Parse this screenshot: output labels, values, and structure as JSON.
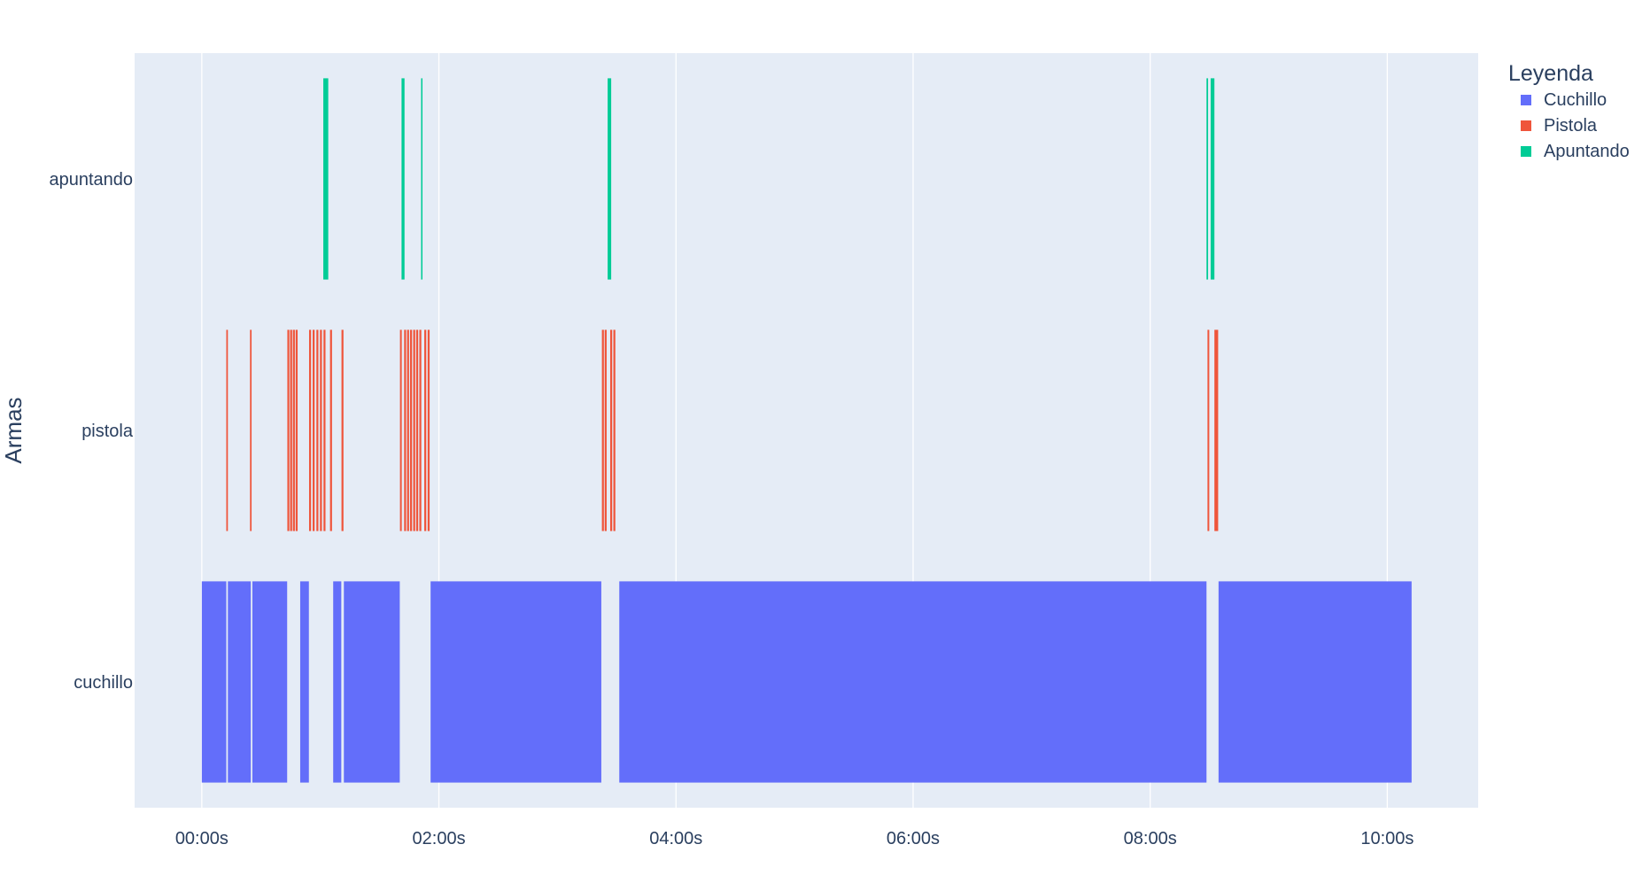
{
  "chart_data": {
    "type": "timeline",
    "title": "",
    "xlabel": "",
    "ylabel": "Armas",
    "x_unit": "seconds",
    "xlim": [
      -34,
      646
    ],
    "x_ticks": [
      {
        "value": 0,
        "label": "00:00s"
      },
      {
        "value": 120,
        "label": "02:00s"
      },
      {
        "value": 240,
        "label": "04:00s"
      },
      {
        "value": 360,
        "label": "06:00s"
      },
      {
        "value": 480,
        "label": "08:00s"
      },
      {
        "value": 600,
        "label": "10:00s"
      }
    ],
    "categories": [
      "cuchillo",
      "pistola",
      "apuntando"
    ],
    "grid": true,
    "legend": {
      "title": "Leyenda",
      "position": "top-right"
    },
    "series": [
      {
        "name": "Cuchillo",
        "category": "cuchillo",
        "color": "#636efa",
        "intervals": [
          [
            0,
            12.4
          ],
          [
            13.2,
            24.8
          ],
          [
            25.6,
            43.2
          ],
          [
            49.8,
            54.2
          ],
          [
            66.5,
            70.6
          ],
          [
            71.9,
            100.2
          ],
          [
            115.8,
            202.2
          ],
          [
            211.3,
            508.5
          ],
          [
            514.6,
            612.3
          ]
        ]
      },
      {
        "name": "Pistola",
        "category": "pistola",
        "color": "#ef553b",
        "intervals": [
          [
            12.4,
            13.2
          ],
          [
            24.4,
            25.2
          ],
          [
            43.3,
            44.3
          ],
          [
            44.7,
            45.7
          ],
          [
            46.1,
            47.1
          ],
          [
            47.5,
            48.5
          ],
          [
            54.3,
            55.3
          ],
          [
            56.1,
            57.1
          ],
          [
            58.0,
            59.0
          ],
          [
            59.8,
            60.8
          ],
          [
            61.6,
            62.6
          ],
          [
            64.9,
            65.9
          ],
          [
            70.7,
            71.7
          ],
          [
            100.3,
            101.2
          ],
          [
            102.4,
            103.4
          ],
          [
            103.9,
            104.9
          ],
          [
            105.4,
            106.4
          ],
          [
            107.0,
            108.0
          ],
          [
            108.5,
            109.5
          ],
          [
            110.1,
            111.1
          ],
          [
            112.6,
            113.6
          ],
          [
            114.3,
            115.3
          ],
          [
            202.5,
            203.5
          ],
          [
            203.9,
            204.9
          ],
          [
            206.7,
            207.7
          ],
          [
            208.3,
            209.3
          ],
          [
            509.0,
            509.9
          ],
          [
            512.5,
            514.4
          ]
        ]
      },
      {
        "name": "Apuntando",
        "category": "apuntando",
        "color": "#00cc96",
        "intervals": [
          [
            61.5,
            64.0
          ],
          [
            101.1,
            102.6
          ],
          [
            111.0,
            111.7
          ],
          [
            205.4,
            207.2
          ],
          [
            508.5,
            509.3
          ],
          [
            510.6,
            512.5
          ]
        ]
      }
    ]
  }
}
